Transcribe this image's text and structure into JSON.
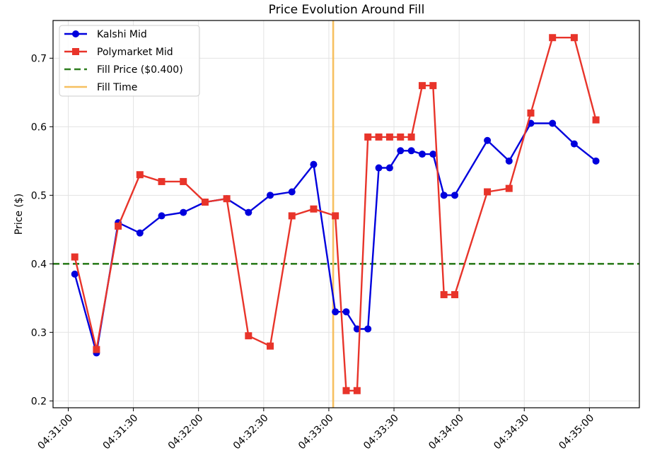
{
  "chart_data": {
    "type": "line",
    "title": "Price Evolution Around Fill",
    "xlabel": "",
    "ylabel": "Price ($)",
    "x_range": [
      "04:30:53",
      "04:35:23"
    ],
    "ylim": [
      0.19,
      0.755
    ],
    "x_ticks": [
      "04:31:00",
      "04:31:30",
      "04:32:00",
      "04:32:30",
      "04:33:00",
      "04:33:30",
      "04:34:00",
      "04:34:30",
      "04:35:00"
    ],
    "y_ticks": [
      "0.2",
      "0.3",
      "0.4",
      "0.5",
      "0.6",
      "0.7"
    ],
    "grid": true,
    "legend_position": "top-left",
    "series": [
      {
        "name": "Kalshi Mid",
        "color": "#0000dd",
        "marker": "circle",
        "points": [
          [
            "04:31:03",
            0.385
          ],
          [
            "04:31:13",
            0.27
          ],
          [
            "04:31:23",
            0.46
          ],
          [
            "04:31:33",
            0.445
          ],
          [
            "04:31:43",
            0.47
          ],
          [
            "04:31:53",
            0.475
          ],
          [
            "04:32:03",
            0.49
          ],
          [
            "04:32:13",
            0.495
          ],
          [
            "04:32:23",
            0.475
          ],
          [
            "04:32:33",
            0.5
          ],
          [
            "04:32:43",
            0.505
          ],
          [
            "04:32:53",
            0.545
          ],
          [
            "04:33:03",
            0.33
          ],
          [
            "04:33:08",
            0.33
          ],
          [
            "04:33:13",
            0.305
          ],
          [
            "04:33:18",
            0.305
          ],
          [
            "04:33:23",
            0.54
          ],
          [
            "04:33:28",
            0.54
          ],
          [
            "04:33:33",
            0.565
          ],
          [
            "04:33:38",
            0.565
          ],
          [
            "04:33:43",
            0.56
          ],
          [
            "04:33:48",
            0.56
          ],
          [
            "04:33:53",
            0.5
          ],
          [
            "04:33:58",
            0.5
          ],
          [
            "04:34:13",
            0.58
          ],
          [
            "04:34:23",
            0.55
          ],
          [
            "04:34:33",
            0.605
          ],
          [
            "04:34:43",
            0.605
          ],
          [
            "04:34:53",
            0.575
          ],
          [
            "04:35:03",
            0.55
          ]
        ]
      },
      {
        "name": "Polymarket Mid",
        "color": "#e8342a",
        "marker": "square",
        "points": [
          [
            "04:31:03",
            0.41
          ],
          [
            "04:31:13",
            0.275
          ],
          [
            "04:31:23",
            0.455
          ],
          [
            "04:31:33",
            0.53
          ],
          [
            "04:31:43",
            0.52
          ],
          [
            "04:31:53",
            0.52
          ],
          [
            "04:32:03",
            0.49
          ],
          [
            "04:32:13",
            0.495
          ],
          [
            "04:32:23",
            0.295
          ],
          [
            "04:32:33",
            0.28
          ],
          [
            "04:32:43",
            0.47
          ],
          [
            "04:32:53",
            0.48
          ],
          [
            "04:33:03",
            0.47
          ],
          [
            "04:33:08",
            0.215
          ],
          [
            "04:33:13",
            0.215
          ],
          [
            "04:33:18",
            0.585
          ],
          [
            "04:33:23",
            0.585
          ],
          [
            "04:33:28",
            0.585
          ],
          [
            "04:33:33",
            0.585
          ],
          [
            "04:33:38",
            0.585
          ],
          [
            "04:33:43",
            0.66
          ],
          [
            "04:33:48",
            0.66
          ],
          [
            "04:33:53",
            0.355
          ],
          [
            "04:33:58",
            0.355
          ],
          [
            "04:34:13",
            0.505
          ],
          [
            "04:34:23",
            0.51
          ],
          [
            "04:34:33",
            0.62
          ],
          [
            "04:34:43",
            0.73
          ],
          [
            "04:34:53",
            0.73
          ],
          [
            "04:35:03",
            0.61
          ]
        ]
      }
    ],
    "reference_lines": [
      {
        "name": "Fill Price ($0.400)",
        "orientation": "horizontal",
        "value": 0.4,
        "color": "#2e7d1f",
        "style": "dashed"
      },
      {
        "name": "Fill Time",
        "orientation": "vertical",
        "value": "04:33:02",
        "color": "#f6c060",
        "style": "solid"
      }
    ]
  }
}
